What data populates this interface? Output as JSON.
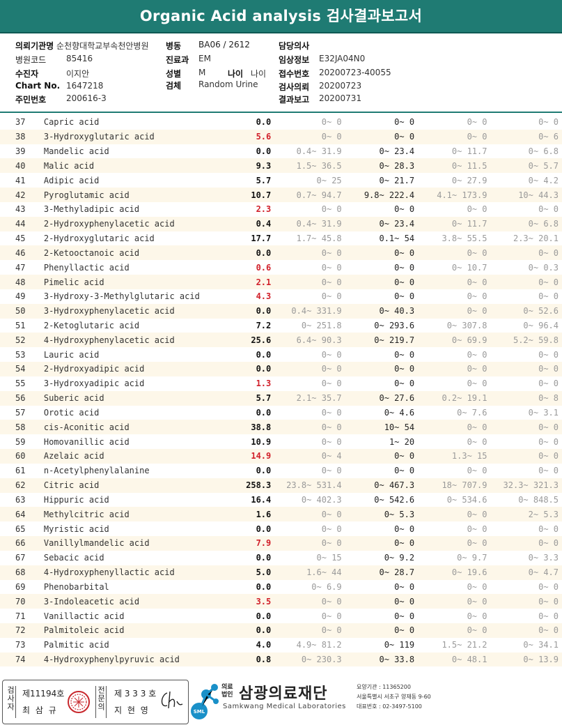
{
  "title": "Organic Acid analysis 검사결과보고서",
  "header": {
    "institution_label": "의뢰기관명",
    "institution": "순천향대학교부속천안병원",
    "ward_label": "병동",
    "ward": "BA06 / 2612",
    "doctor_label": "담당의사",
    "doctor": "",
    "hospital_code_label": "병원코드",
    "hospital_code": "85416",
    "department_label": "진료과",
    "department": "EM",
    "clinical_label": "임상정보",
    "clinical": "E32JA04N0",
    "collector_label": "수진자",
    "collector": "이지안",
    "sex_label": "성별",
    "sex": "M",
    "age_label": "나이",
    "age": "나이",
    "receipt_label": "접수번호",
    "receipt": "20200723-40055",
    "chart_label": "Chart No.",
    "chart": "1647218",
    "specimen_label": "검체",
    "specimen": "Random Urine",
    "request_label": "검사의뢰",
    "request": "20200723",
    "resident_label": "주민번호",
    "resident": "200616-3",
    "report_label": "결과보고",
    "report": "20200731"
  },
  "rows": [
    {
      "no": "37",
      "name": "Capric acid",
      "result": "0.0",
      "high": false,
      "r1": "0~ 0",
      "r2": "0~ 0",
      "r3": "0~ 0",
      "r4": "0~ 0"
    },
    {
      "no": "38",
      "name": "3-Hydroxyglutaric acid",
      "result": "5.6",
      "high": true,
      "r1": "0~ 0",
      "r2": "0~ 0",
      "r3": "0~ 0",
      "r4": "0~ 6"
    },
    {
      "no": "39",
      "name": "Mandelic acid",
      "result": "0.0",
      "high": false,
      "r1": "0.4~ 31.9",
      "r2": "0~ 23.4",
      "r3": "0~ 11.7",
      "r4": "0~ 6.8"
    },
    {
      "no": "40",
      "name": "Malic acid",
      "result": "9.3",
      "high": false,
      "r1": "1.5~ 36.5",
      "r2": "0~ 28.3",
      "r3": "0~ 11.5",
      "r4": "0~ 5.7"
    },
    {
      "no": "41",
      "name": "Adipic acid",
      "result": "5.7",
      "high": false,
      "r1": "0~ 25",
      "r2": "0~ 21.7",
      "r3": "0~ 27.9",
      "r4": "0~ 4.2"
    },
    {
      "no": "42",
      "name": "Pyroglutamic acid",
      "result": "10.7",
      "high": false,
      "r1": "0.7~ 94.7",
      "r2": "9.8~ 222.4",
      "r3": "4.1~ 173.9",
      "r4": "10~ 44.3"
    },
    {
      "no": "43",
      "name": "3-Methyladipic acid",
      "result": "2.3",
      "high": true,
      "r1": "0~ 0",
      "r2": "0~ 0",
      "r3": "0~ 0",
      "r4": "0~ 0"
    },
    {
      "no": "44",
      "name": "2-Hydroxyphenylacetic acid",
      "result": "0.4",
      "high": false,
      "r1": "0.4~ 31.9",
      "r2": "0~ 23.4",
      "r3": "0~ 11.7",
      "r4": "0~ 6.8"
    },
    {
      "no": "45",
      "name": "2-Hydroxyglutaric acid",
      "result": "17.7",
      "high": false,
      "r1": "1.7~ 45.8",
      "r2": "0.1~ 54",
      "r3": "3.8~ 55.5",
      "r4": "2.3~ 20.1"
    },
    {
      "no": "46",
      "name": "2-Ketooctanoic acid",
      "result": "0.0",
      "high": false,
      "r1": "0~ 0",
      "r2": "0~ 0",
      "r3": "0~ 0",
      "r4": "0~ 0"
    },
    {
      "no": "47",
      "name": "Phenyllactic acid",
      "result": "0.6",
      "high": true,
      "r1": "0~ 0",
      "r2": "0~ 0",
      "r3": "0~ 10.7",
      "r4": "0~ 0.3"
    },
    {
      "no": "48",
      "name": "Pimelic acid",
      "result": "2.1",
      "high": true,
      "r1": "0~ 0",
      "r2": "0~ 0",
      "r3": "0~ 0",
      "r4": "0~ 0"
    },
    {
      "no": "49",
      "name": "3-Hydroxy-3-Methylglutaric acid",
      "result": "4.3",
      "high": true,
      "r1": "0~ 0",
      "r2": "0~ 0",
      "r3": "0~ 0",
      "r4": "0~ 0"
    },
    {
      "no": "50",
      "name": "3-Hydroxyphenylacetic acid",
      "result": "0.0",
      "high": false,
      "r1": "0.4~ 331.9",
      "r2": "0~ 40.3",
      "r3": "0~ 0",
      "r4": "0~ 52.6"
    },
    {
      "no": "51",
      "name": "2-Ketoglutaric acid",
      "result": "7.2",
      "high": false,
      "r1": "0~ 251.8",
      "r2": "0~ 293.6",
      "r3": "0~ 307.8",
      "r4": "0~ 96.4"
    },
    {
      "no": "52",
      "name": "4-Hydroxyphenylacetic acid",
      "result": "25.6",
      "high": false,
      "r1": "6.4~ 90.3",
      "r2": "0~ 219.7",
      "r3": "0~ 69.9",
      "r4": "5.2~ 59.8"
    },
    {
      "no": "53",
      "name": "Lauric acid",
      "result": "0.0",
      "high": false,
      "r1": "0~ 0",
      "r2": "0~ 0",
      "r3": "0~ 0",
      "r4": "0~ 0"
    },
    {
      "no": "54",
      "name": "2-Hydroxyadipic acid",
      "result": "0.0",
      "high": false,
      "r1": "0~ 0",
      "r2": "0~ 0",
      "r3": "0~ 0",
      "r4": "0~ 0"
    },
    {
      "no": "55",
      "name": "3-Hydroxyadipic acid",
      "result": "1.3",
      "high": true,
      "r1": "0~ 0",
      "r2": "0~ 0",
      "r3": "0~ 0",
      "r4": "0~ 0"
    },
    {
      "no": "56",
      "name": "Suberic acid",
      "result": "5.7",
      "high": false,
      "r1": "2.1~ 35.7",
      "r2": "0~ 27.6",
      "r3": "0.2~ 19.1",
      "r4": "0~ 8"
    },
    {
      "no": "57",
      "name": "Orotic acid",
      "result": "0.0",
      "high": false,
      "r1": "0~ 0",
      "r2": "0~ 4.6",
      "r3": "0~ 7.6",
      "r4": "0~ 3.1"
    },
    {
      "no": "58",
      "name": "cis-Aconitic acid",
      "result": "38.8",
      "high": false,
      "r1": "0~ 0",
      "r2": "10~ 54",
      "r3": "0~ 0",
      "r4": "0~ 0"
    },
    {
      "no": "59",
      "name": "Homovanillic acid",
      "result": "10.9",
      "high": false,
      "r1": "0~ 0",
      "r2": "1~ 20",
      "r3": "0~ 0",
      "r4": "0~ 0"
    },
    {
      "no": "60",
      "name": "Azelaic acid",
      "result": "14.9",
      "high": true,
      "r1": "0~ 4",
      "r2": "0~ 0",
      "r3": "1.3~ 15",
      "r4": "0~ 0"
    },
    {
      "no": "61",
      "name": "n-Acetylphenylalanine",
      "result": "0.0",
      "high": false,
      "r1": "0~ 0",
      "r2": "0~ 0",
      "r3": "0~ 0",
      "r4": "0~ 0"
    },
    {
      "no": "62",
      "name": "Citric acid",
      "result": "258.3",
      "high": false,
      "r1": "23.8~ 531.4",
      "r2": "0~ 467.3",
      "r3": "18~ 707.9",
      "r4": "32.3~ 321.3"
    },
    {
      "no": "63",
      "name": "Hippuric acid",
      "result": "16.4",
      "high": false,
      "r1": "0~ 402.3",
      "r2": "0~ 542.6",
      "r3": "0~ 534.6",
      "r4": "0~ 848.5"
    },
    {
      "no": "64",
      "name": "Methylcitric acid",
      "result": "1.6",
      "high": false,
      "r1": "0~ 0",
      "r2": "0~ 5.3",
      "r3": "0~ 0",
      "r4": "2~ 5.3"
    },
    {
      "no": "65",
      "name": "Myristic acid",
      "result": "0.0",
      "high": false,
      "r1": "0~ 0",
      "r2": "0~ 0",
      "r3": "0~ 0",
      "r4": "0~ 0"
    },
    {
      "no": "66",
      "name": "Vanillylmandelic acid",
      "result": "7.9",
      "high": true,
      "r1": "0~ 0",
      "r2": "0~ 0",
      "r3": "0~ 0",
      "r4": "0~ 0"
    },
    {
      "no": "67",
      "name": "Sebacic acid",
      "result": "0.0",
      "high": false,
      "r1": "0~ 15",
      "r2": "0~ 9.2",
      "r3": "0~ 9.7",
      "r4": "0~ 3.3"
    },
    {
      "no": "68",
      "name": "4-Hydroxyphenyllactic acid",
      "result": "5.0",
      "high": false,
      "r1": "1.6~ 44",
      "r2": "0~ 28.7",
      "r3": "0~ 19.6",
      "r4": "0~ 4.7"
    },
    {
      "no": "69",
      "name": "Phenobarbital",
      "result": "0.0",
      "high": false,
      "r1": "0~ 6.9",
      "r2": "0~ 0",
      "r3": "0~ 0",
      "r4": "0~ 0"
    },
    {
      "no": "70",
      "name": "3-Indoleacetic acid",
      "result": "3.5",
      "high": true,
      "r1": "0~ 0",
      "r2": "0~ 0",
      "r3": "0~ 0",
      "r4": "0~ 0"
    },
    {
      "no": "71",
      "name": "Vanillactic acid",
      "result": "0.0",
      "high": false,
      "r1": "0~ 0",
      "r2": "0~ 0",
      "r3": "0~ 0",
      "r4": "0~ 0"
    },
    {
      "no": "72",
      "name": "Palmitoleic acid",
      "result": "0.0",
      "high": false,
      "r1": "0~ 0",
      "r2": "0~ 0",
      "r3": "0~ 0",
      "r4": "0~ 0"
    },
    {
      "no": "73",
      "name": "Palmitic acid",
      "result": "4.0",
      "high": false,
      "r1": "4.9~ 81.2",
      "r2": "0~ 119",
      "r3": "1.5~ 21.2",
      "r4": "0~ 34.1"
    },
    {
      "no": "74",
      "name": "4-Hydroxyphenylpyruvic acid",
      "result": "0.8",
      "high": false,
      "r1": "0~ 230.3",
      "r2": "0~ 33.8",
      "r3": "0~ 48.1",
      "r4": "0~ 13.9"
    }
  ],
  "footer": {
    "examiner_v": "검사자",
    "examiner_license": "제11194호",
    "examiner_name": "최 삼 규",
    "specialist_v": "전문의",
    "specialist_license": "제 3 3 3 호",
    "specialist_name": "지 현 영",
    "org_tag": "의료법인",
    "org_name": "삼광의료재단",
    "org_en": "Samkwang Medical Laboratories",
    "logo_mark": "SML",
    "contact_1": "요양기관 : 11365200",
    "contact_2": "서울특별시 서초구 양재동 9-60",
    "contact_3": "대표번호 : 02-3497-5100",
    "accent": "#1f7b73"
  }
}
